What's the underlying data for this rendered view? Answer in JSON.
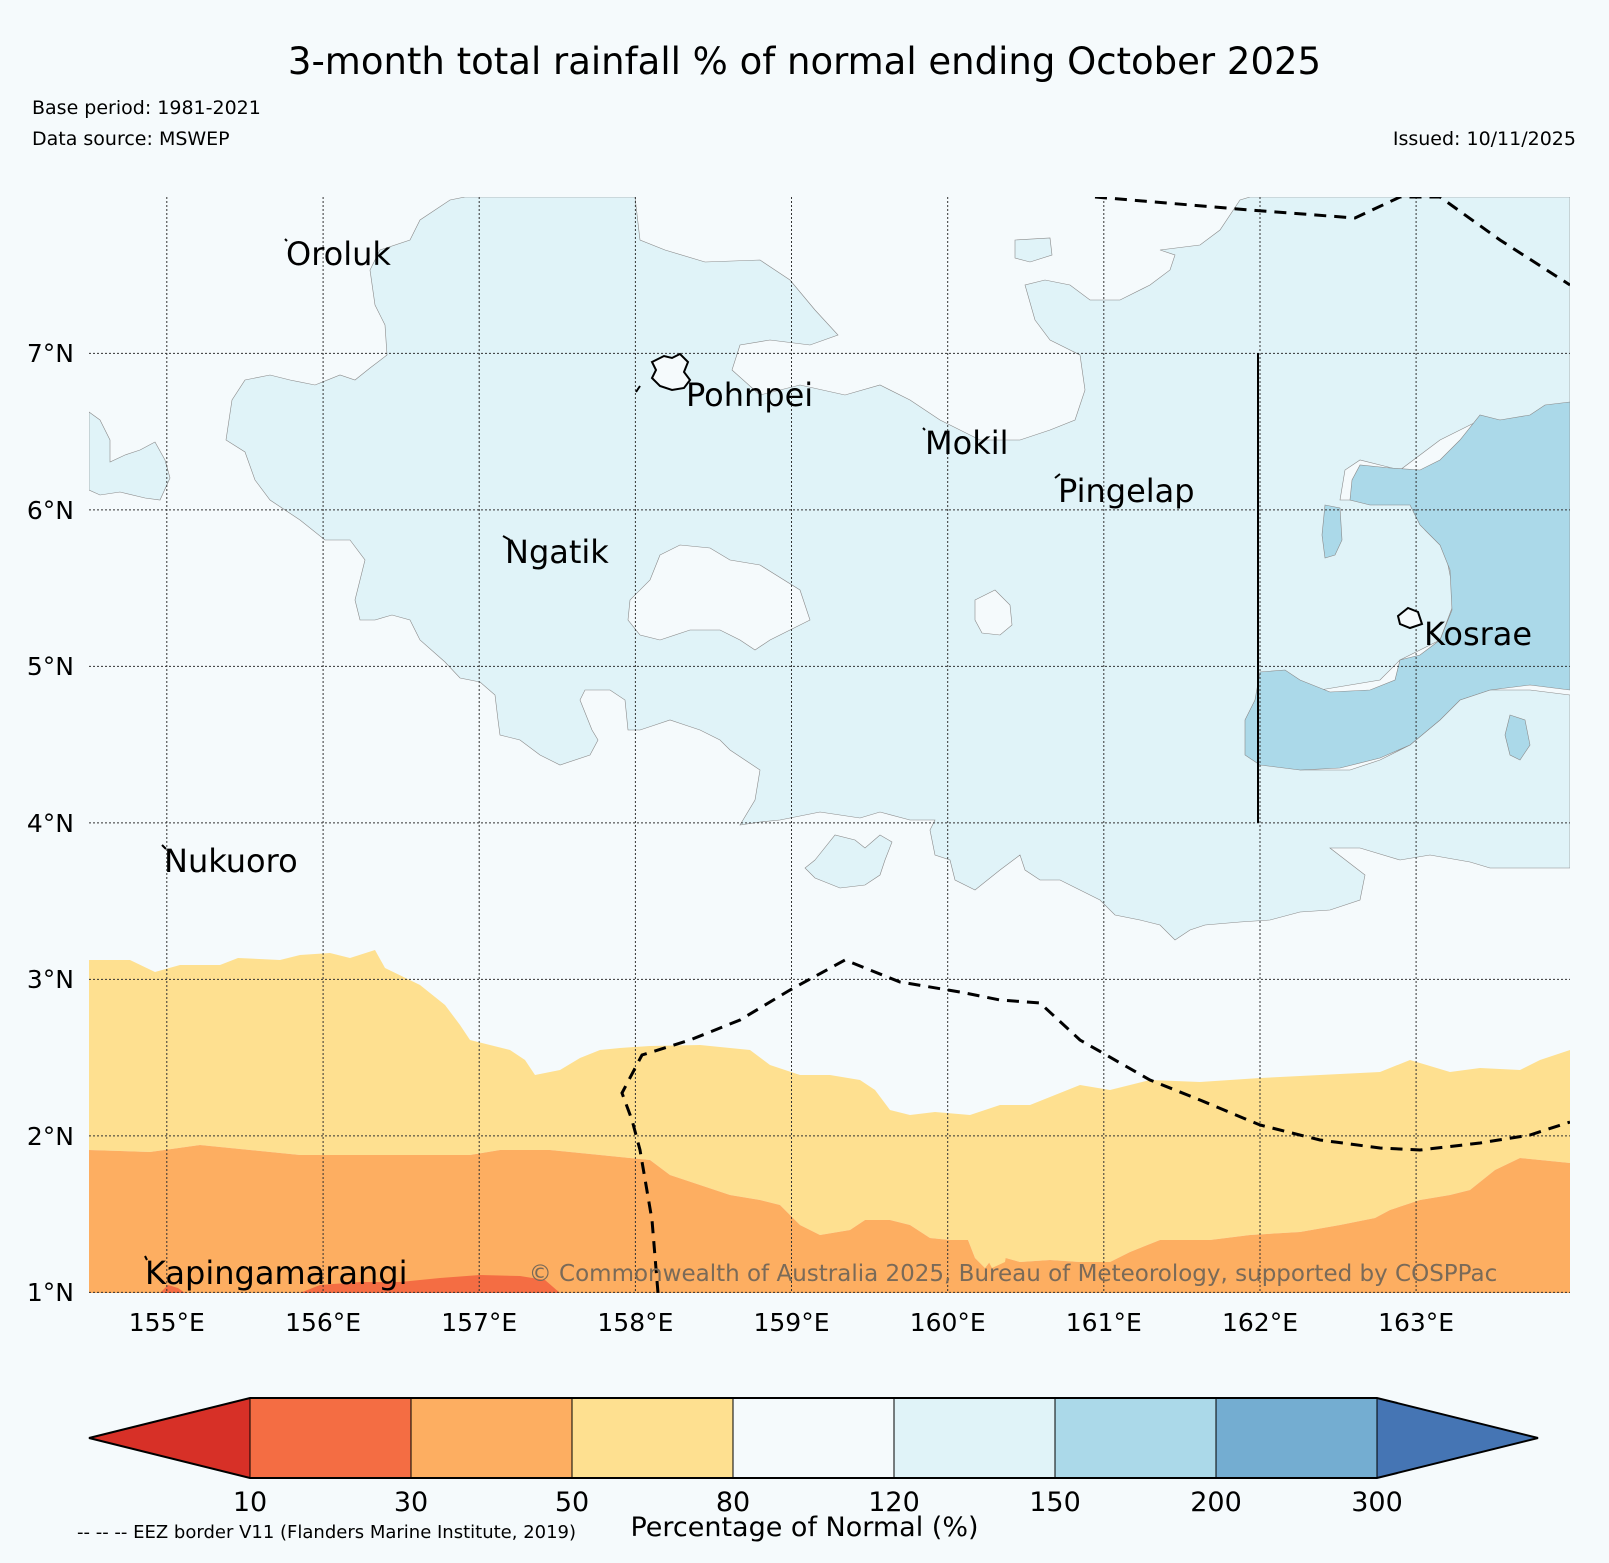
{
  "title": "3-month total rainfall % of normal ending October 2025",
  "base_period": "Base period: 1981-2021",
  "data_source": "Data source: MSWEP",
  "issued": "Issued: 10/11/2025",
  "map": {
    "lat_range": [
      1,
      8
    ],
    "lon_range": [
      154.5,
      164
    ],
    "lat_labels": [
      "7°N",
      "6°N",
      "5°N",
      "4°N",
      "3°N",
      "2°N",
      "1°N"
    ],
    "lon_labels": [
      "155°E",
      "156°E",
      "157°E",
      "158°E",
      "159°E",
      "160°E",
      "161°E",
      "162°E",
      "163°E"
    ],
    "places": [
      {
        "name": "Oroluk",
        "lon": 155.8,
        "lat": 7.6
      },
      {
        "name": "Pohnpei",
        "lon": 158.2,
        "lat": 6.85
      },
      {
        "name": "Mokil",
        "lon": 159.8,
        "lat": 6.6
      },
      {
        "name": "Pingelap",
        "lon": 160.7,
        "lat": 6.2
      },
      {
        "name": "Ngatik",
        "lon": 157.1,
        "lat": 5.8
      },
      {
        "name": "Kosrae",
        "lon": 163.0,
        "lat": 5.3
      },
      {
        "name": "Nukuoro",
        "lon": 154.95,
        "lat": 3.85
      },
      {
        "name": "Kapingamarangi",
        "lon": 154.8,
        "lat": 1.1
      }
    ],
    "copyright": "© Commonwealth of Australia 2025, Bureau of Meteorology, supported by COSPPac"
  },
  "colorbar": {
    "label": "Percentage of Normal (%)",
    "ticks": [
      "10",
      "30",
      "50",
      "80",
      "120",
      "150",
      "200",
      "300"
    ],
    "colors": [
      "#d73027",
      "#f46d43",
      "#fdae61",
      "#fee090",
      "#f5fafc",
      "#e0f3f8",
      "#abd9e9",
      "#74add1",
      "#4575b4"
    ]
  },
  "eez_note": "-- -- -- EEZ border V11 (Flanders Marine Institute, 2019)"
}
